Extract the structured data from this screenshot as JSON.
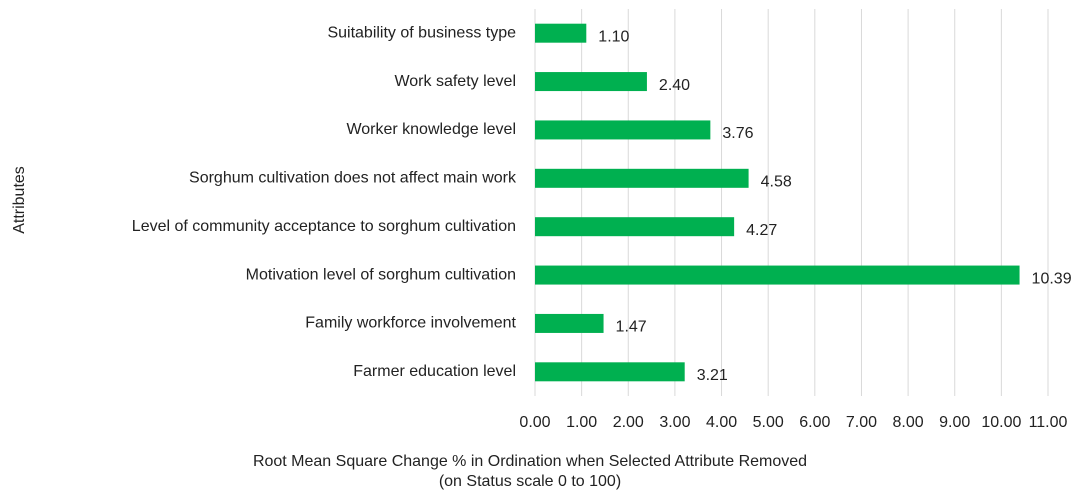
{
  "chart_data": {
    "type": "bar",
    "orientation": "horizontal",
    "categories": [
      "Suitability of business type",
      "Work safety level",
      "Worker knowledge level",
      "Sorghum cultivation does not affect main work",
      "Level of community acceptance to sorghum cultivation",
      "Motivation level of sorghum cultivation",
      "Family workforce involvement",
      "Farmer education level"
    ],
    "values": [
      1.1,
      2.4,
      3.76,
      4.58,
      4.27,
      10.39,
      1.47,
      3.21
    ],
    "value_labels": [
      "1.10",
      "2.40",
      "3.76",
      "4.58",
      "4.27",
      "10.39",
      "1.47",
      "3.21"
    ],
    "color": "#00b050",
    "xlim": [
      0,
      11
    ],
    "xticks": [
      {
        "value": 0,
        "label": "0.00"
      },
      {
        "value": 1,
        "label": "1.00"
      },
      {
        "value": 2,
        "label": "2.00"
      },
      {
        "value": 3,
        "label": "3.00"
      },
      {
        "value": 4,
        "label": "4.00"
      },
      {
        "value": 5,
        "label": "5.00"
      },
      {
        "value": 6,
        "label": "6.00"
      },
      {
        "value": 7,
        "label": "7.00"
      },
      {
        "value": 8,
        "label": "8.00"
      },
      {
        "value": 9,
        "label": "9.00"
      },
      {
        "value": 10,
        "label": "10.00"
      },
      {
        "value": 11,
        "label": "11.00"
      }
    ],
    "x_label": [
      "Root Mean Square Change % in Ordination when Selected Attribute Removed",
      "(on Status scale 0 to 100)"
    ],
    "y_label": "Attributes",
    "grid": true
  }
}
